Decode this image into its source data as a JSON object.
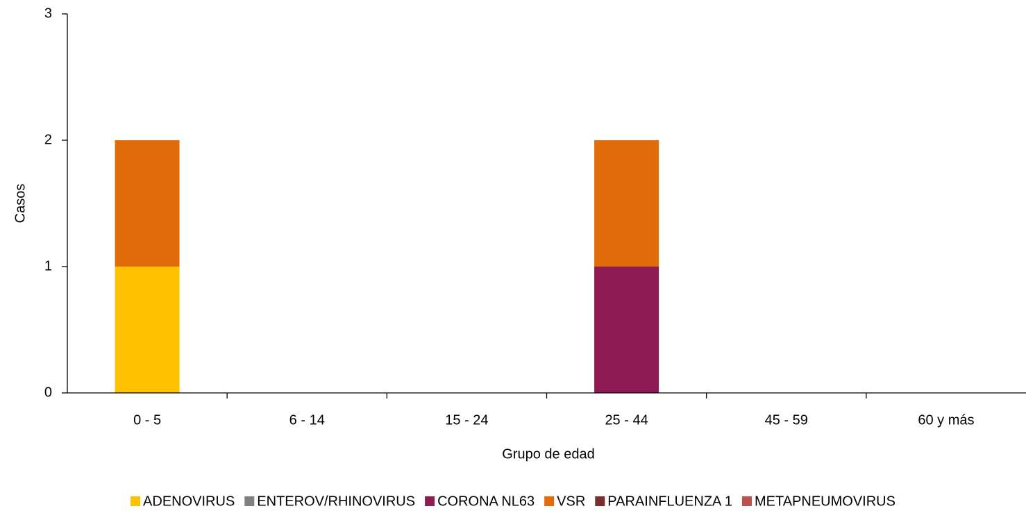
{
  "chart_data": {
    "type": "stacked_bar",
    "xlabel": "Grupo de edad",
    "ylabel": "Casos",
    "categories": [
      "0 - 5",
      "6 - 14",
      "15 - 24",
      "25 - 44",
      "45 - 59",
      "60 y más"
    ],
    "series": [
      {
        "name": "ADENOVIRUS",
        "color": "#FFC000",
        "values": [
          1,
          0,
          0,
          0,
          0,
          0
        ]
      },
      {
        "name": "ENTEROV/RHINOVIRUS",
        "color": "#808080",
        "values": [
          0,
          0,
          0,
          0,
          0,
          0
        ]
      },
      {
        "name": "CORONA NL63",
        "color": "#8E1B52",
        "values": [
          0,
          0,
          0,
          1,
          0,
          0
        ]
      },
      {
        "name": "VSR",
        "color": "#E36C0A",
        "values": [
          1,
          0,
          0,
          1,
          0,
          0
        ]
      },
      {
        "name": "PARAINFLUENZA 1",
        "color": "#7B2C2C",
        "values": [
          0,
          0,
          0,
          0,
          0,
          0
        ]
      },
      {
        "name": "METAPNEUMOVIRUS",
        "color": "#C0504D",
        "values": [
          0,
          0,
          0,
          0,
          0,
          0
        ]
      }
    ],
    "ylim": [
      0,
      3
    ],
    "yticks": [
      0,
      1,
      2,
      3
    ],
    "grid": false,
    "legend": "bottom"
  }
}
